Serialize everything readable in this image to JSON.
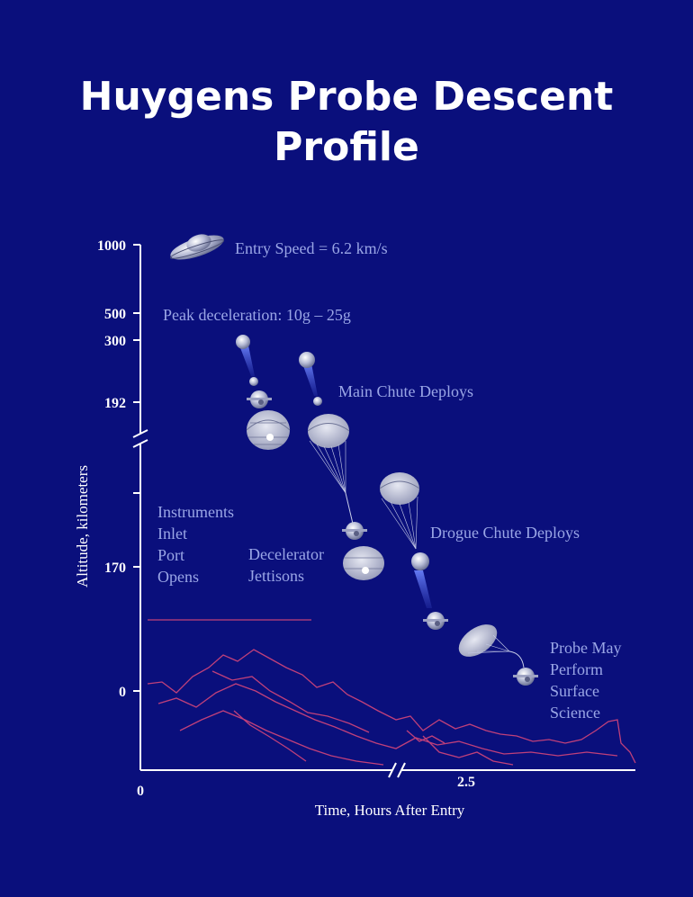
{
  "title": {
    "line1": "Huygens Probe Descent",
    "line2": "Profile"
  },
  "axes": {
    "y_title": "Altitude, kilometers",
    "x_title": "Time, Hours After Entry",
    "y_ticks": [
      "1000",
      "500",
      "300",
      "192",
      "170",
      "0"
    ],
    "x_ticks": [
      "0",
      "2.5"
    ]
  },
  "annotations": {
    "entry_speed": "Entry Speed = 6.2 km/s",
    "peak_decel": "Peak deceleration: 10g – 25g",
    "main_chute": "Main Chute Deploys",
    "instruments": [
      "Instruments",
      "Inlet",
      "Port",
      "Opens"
    ],
    "decelerator": [
      "Decelerator",
      "Jettisons"
    ],
    "drogue": "Drogue Chute Deploys",
    "surface": [
      "Probe May",
      "Perform",
      "Surface",
      "Science"
    ]
  },
  "colors": {
    "background": "#0a0f7c",
    "label": "#9aa6e6",
    "terrain": "#c0407a",
    "axis": "#ffffff"
  }
}
